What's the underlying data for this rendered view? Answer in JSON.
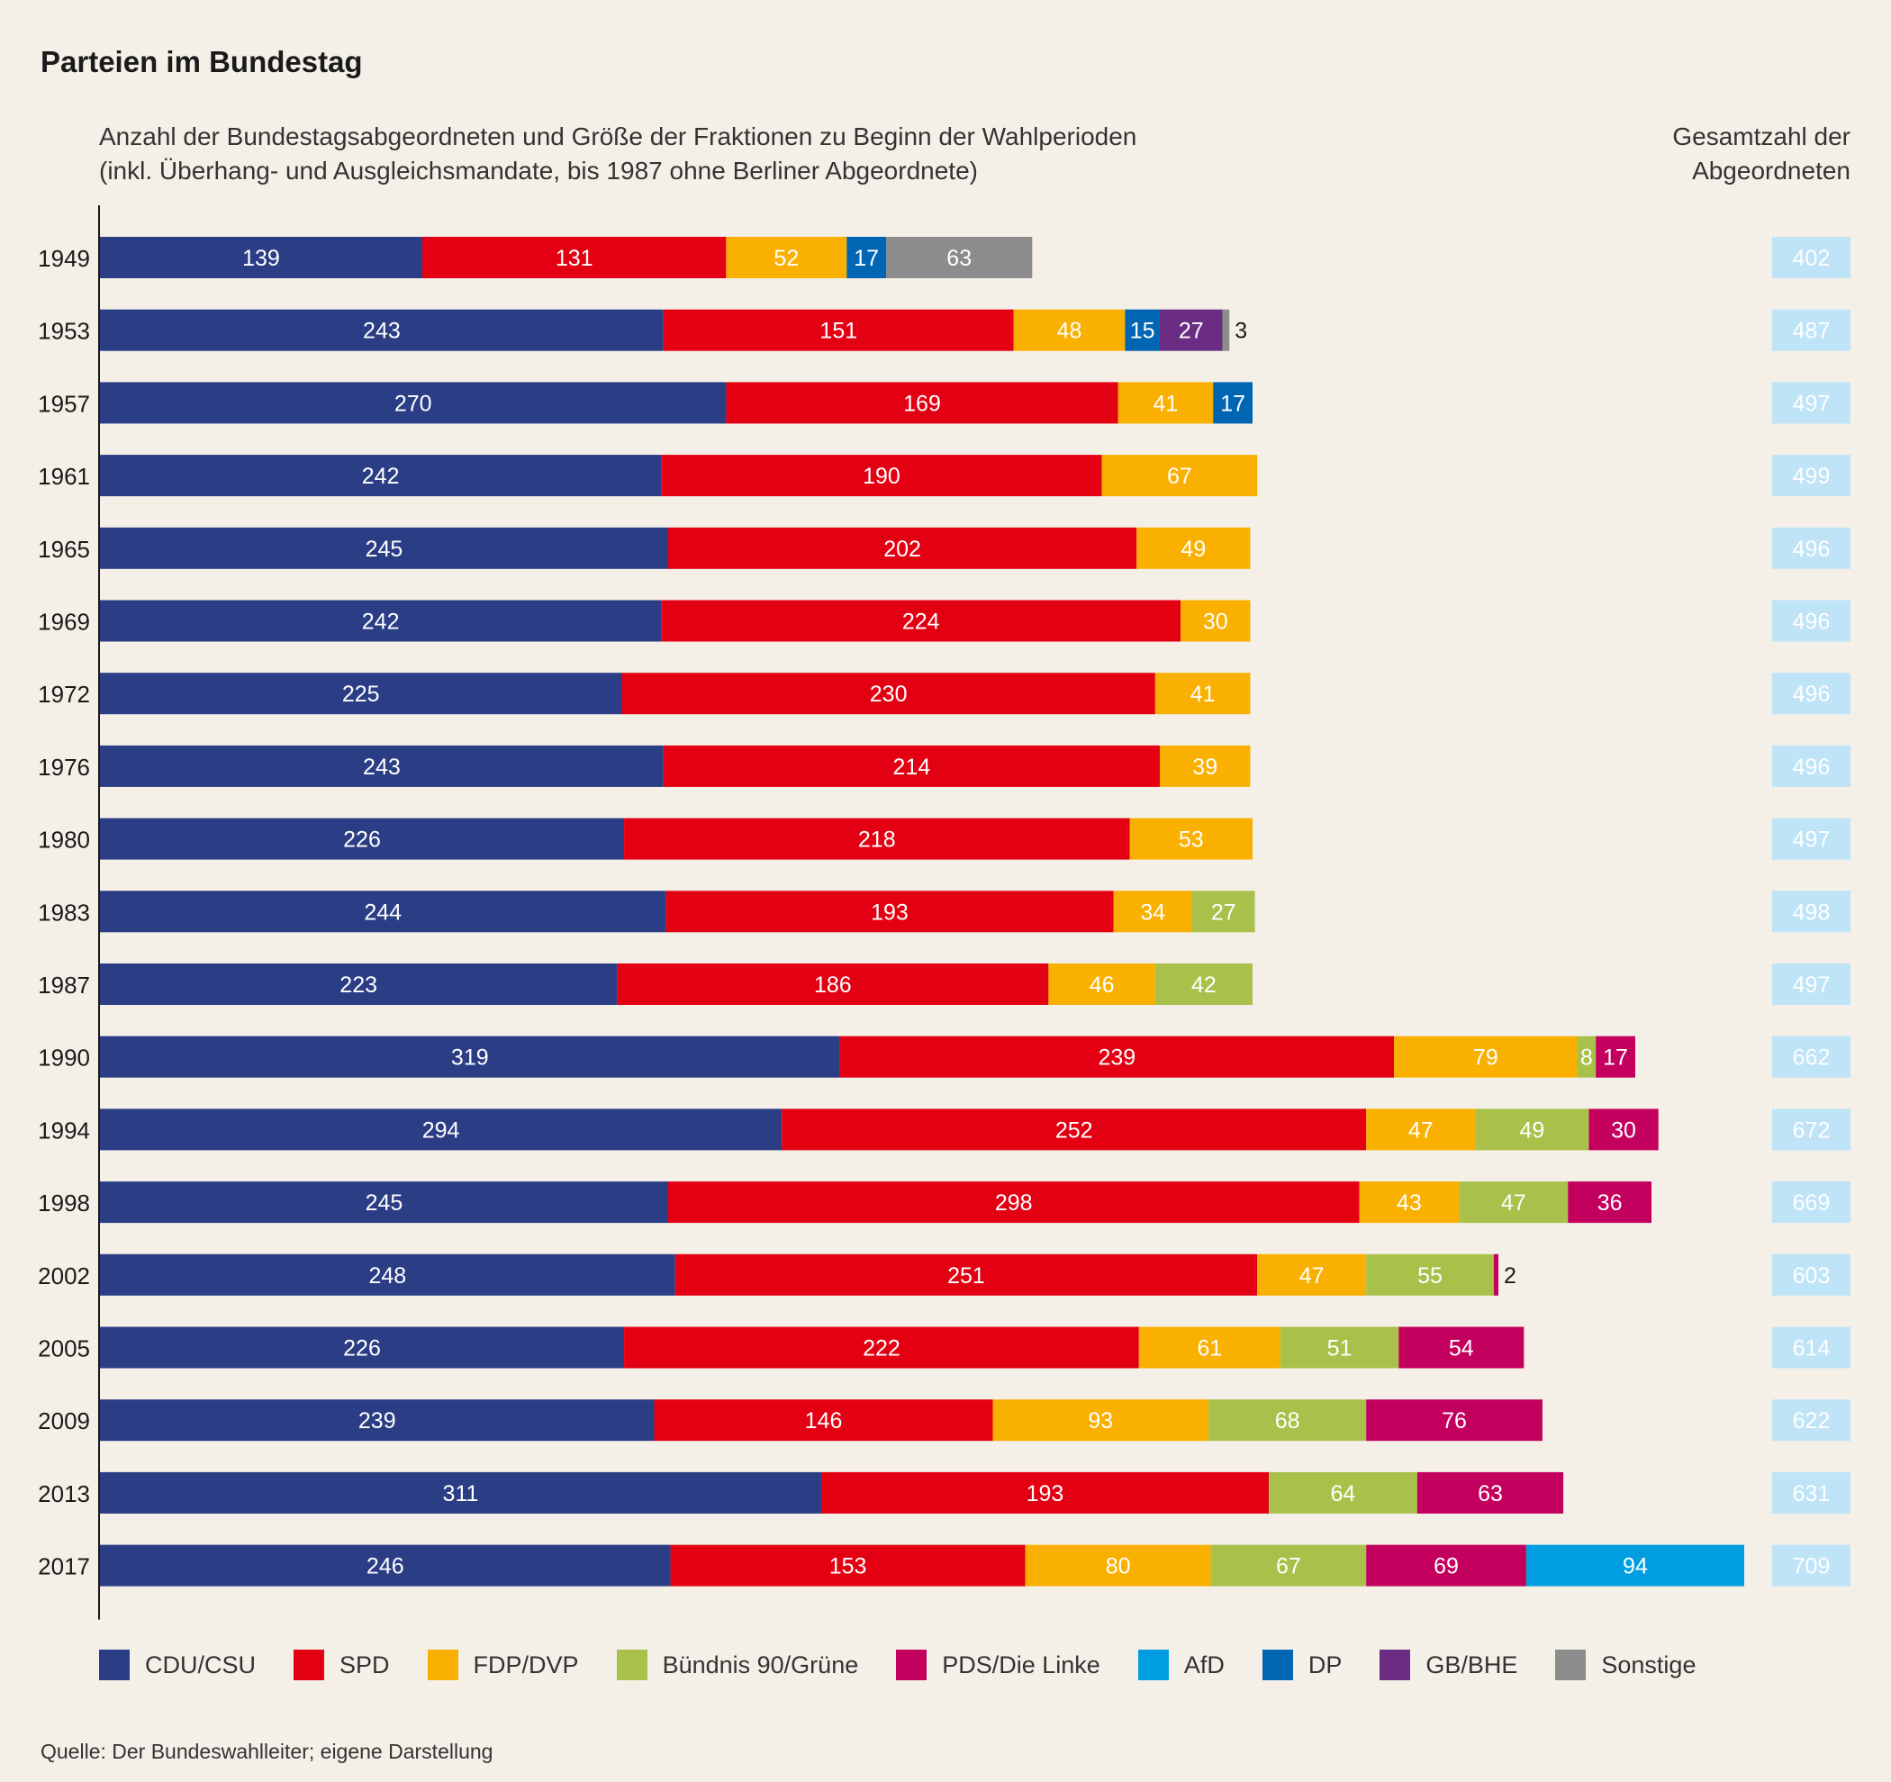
{
  "title": "Parteien im Bundestag",
  "subtitle_line1": "Anzahl der Bundestagsabgeordneten und Größe der Fraktionen zu Beginn der Wahlperioden",
  "subtitle_line2": "(inkl. Überhang- und Ausgleichsmandate, bis 1987 ohne Berliner Abgeordnete)",
  "total_header_line1": "Gesamtzahl der",
  "total_header_line2": "Abgeordneten",
  "source": "Quelle: Der Bundeswahlleiter; eigene Darstellung",
  "chart_data": {
    "type": "bar",
    "orientation": "horizontal",
    "stacked": true,
    "title": "Parteien im Bundestag",
    "xlim": [
      0,
      710
    ],
    "legend_position": "bottom",
    "grid": false,
    "parties": [
      {
        "name": "CDU/CSU",
        "color": "#2b3d85",
        "label_color": "#ffffff"
      },
      {
        "name": "SPD",
        "color": "#e30013",
        "label_color": "#ffffff"
      },
      {
        "name": "FDP/DVP",
        "color": "#f9b000",
        "label_color": "#ffffff"
      },
      {
        "name": "Bündnis 90/Grüne",
        "color": "#a9c14a",
        "label_color": "#ffffff"
      },
      {
        "name": "PDS/Die Linke",
        "color": "#c4005e",
        "label_color": "#ffffff"
      },
      {
        "name": "AfD",
        "color": "#009ee0",
        "label_color": "#ffffff"
      },
      {
        "name": "DP",
        "color": "#0066b3",
        "label_color": "#ffffff"
      },
      {
        "name": "GB/BHE",
        "color": "#6b2d83",
        "label_color": "#ffffff"
      },
      {
        "name": "Sonstige",
        "color": "#8c8c8c",
        "label_color": "#ffffff"
      }
    ],
    "rows": [
      {
        "year": "1949",
        "total": 402,
        "segments": [
          {
            "party": "CDU/CSU",
            "value": 139
          },
          {
            "party": "SPD",
            "value": 131
          },
          {
            "party": "FDP/DVP",
            "value": 52
          },
          {
            "party": "DP",
            "value": 17
          },
          {
            "party": "Sonstige",
            "value": 63
          }
        ]
      },
      {
        "year": "1953",
        "total": 487,
        "segments": [
          {
            "party": "CDU/CSU",
            "value": 243
          },
          {
            "party": "SPD",
            "value": 151
          },
          {
            "party": "FDP/DVP",
            "value": 48
          },
          {
            "party": "DP",
            "value": 15
          },
          {
            "party": "GB/BHE",
            "value": 27
          },
          {
            "party": "Sonstige",
            "value": 3
          }
        ]
      },
      {
        "year": "1957",
        "total": 497,
        "segments": [
          {
            "party": "CDU/CSU",
            "value": 270
          },
          {
            "party": "SPD",
            "value": 169
          },
          {
            "party": "FDP/DVP",
            "value": 41
          },
          {
            "party": "DP",
            "value": 17
          }
        ]
      },
      {
        "year": "1961",
        "total": 499,
        "segments": [
          {
            "party": "CDU/CSU",
            "value": 242
          },
          {
            "party": "SPD",
            "value": 190
          },
          {
            "party": "FDP/DVP",
            "value": 67
          }
        ]
      },
      {
        "year": "1965",
        "total": 496,
        "segments": [
          {
            "party": "CDU/CSU",
            "value": 245
          },
          {
            "party": "SPD",
            "value": 202
          },
          {
            "party": "FDP/DVP",
            "value": 49
          }
        ]
      },
      {
        "year": "1969",
        "total": 496,
        "segments": [
          {
            "party": "CDU/CSU",
            "value": 242
          },
          {
            "party": "SPD",
            "value": 224
          },
          {
            "party": "FDP/DVP",
            "value": 30
          }
        ]
      },
      {
        "year": "1972",
        "total": 496,
        "segments": [
          {
            "party": "CDU/CSU",
            "value": 225
          },
          {
            "party": "SPD",
            "value": 230
          },
          {
            "party": "FDP/DVP",
            "value": 41
          }
        ]
      },
      {
        "year": "1976",
        "total": 496,
        "segments": [
          {
            "party": "CDU/CSU",
            "value": 243
          },
          {
            "party": "SPD",
            "value": 214
          },
          {
            "party": "FDP/DVP",
            "value": 39
          }
        ]
      },
      {
        "year": "1980",
        "total": 497,
        "segments": [
          {
            "party": "CDU/CSU",
            "value": 226
          },
          {
            "party": "SPD",
            "value": 218
          },
          {
            "party": "FDP/DVP",
            "value": 53
          }
        ]
      },
      {
        "year": "1983",
        "total": 498,
        "segments": [
          {
            "party": "CDU/CSU",
            "value": 244
          },
          {
            "party": "SPD",
            "value": 193
          },
          {
            "party": "FDP/DVP",
            "value": 34
          },
          {
            "party": "Bündnis 90/Grüne",
            "value": 27
          }
        ]
      },
      {
        "year": "1987",
        "total": 497,
        "segments": [
          {
            "party": "CDU/CSU",
            "value": 223
          },
          {
            "party": "SPD",
            "value": 186
          },
          {
            "party": "FDP/DVP",
            "value": 46
          },
          {
            "party": "Bündnis 90/Grüne",
            "value": 42
          }
        ]
      },
      {
        "year": "1990",
        "total": 662,
        "segments": [
          {
            "party": "CDU/CSU",
            "value": 319
          },
          {
            "party": "SPD",
            "value": 239
          },
          {
            "party": "FDP/DVP",
            "value": 79
          },
          {
            "party": "Bündnis 90/Grüne",
            "value": 8
          },
          {
            "party": "PDS/Die Linke",
            "value": 17
          }
        ]
      },
      {
        "year": "1994",
        "total": 672,
        "segments": [
          {
            "party": "CDU/CSU",
            "value": 294
          },
          {
            "party": "SPD",
            "value": 252
          },
          {
            "party": "FDP/DVP",
            "value": 47
          },
          {
            "party": "Bündnis 90/Grüne",
            "value": 49
          },
          {
            "party": "PDS/Die Linke",
            "value": 30
          }
        ]
      },
      {
        "year": "1998",
        "total": 669,
        "segments": [
          {
            "party": "CDU/CSU",
            "value": 245
          },
          {
            "party": "SPD",
            "value": 298
          },
          {
            "party": "FDP/DVP",
            "value": 43
          },
          {
            "party": "Bündnis 90/Grüne",
            "value": 47
          },
          {
            "party": "PDS/Die Linke",
            "value": 36
          }
        ]
      },
      {
        "year": "2002",
        "total": 603,
        "segments": [
          {
            "party": "CDU/CSU",
            "value": 248
          },
          {
            "party": "SPD",
            "value": 251
          },
          {
            "party": "FDP/DVP",
            "value": 47
          },
          {
            "party": "Bündnis 90/Grüne",
            "value": 55
          },
          {
            "party": "PDS/Die Linke",
            "value": 2
          }
        ]
      },
      {
        "year": "2005",
        "total": 614,
        "segments": [
          {
            "party": "CDU/CSU",
            "value": 226
          },
          {
            "party": "SPD",
            "value": 222
          },
          {
            "party": "FDP/DVP",
            "value": 61
          },
          {
            "party": "Bündnis 90/Grüne",
            "value": 51
          },
          {
            "party": "PDS/Die Linke",
            "value": 54
          }
        ]
      },
      {
        "year": "2009",
        "total": 622,
        "segments": [
          {
            "party": "CDU/CSU",
            "value": 239
          },
          {
            "party": "SPD",
            "value": 146
          },
          {
            "party": "FDP/DVP",
            "value": 93
          },
          {
            "party": "Bündnis 90/Grüne",
            "value": 68
          },
          {
            "party": "PDS/Die Linke",
            "value": 76
          }
        ]
      },
      {
        "year": "2013",
        "total": 631,
        "segments": [
          {
            "party": "CDU/CSU",
            "value": 311
          },
          {
            "party": "SPD",
            "value": 193
          },
          {
            "party": "Bündnis 90/Grüne",
            "value": 64
          },
          {
            "party": "PDS/Die Linke",
            "value": 63
          }
        ]
      },
      {
        "year": "2017",
        "total": 709,
        "segments": [
          {
            "party": "CDU/CSU",
            "value": 246
          },
          {
            "party": "SPD",
            "value": 153
          },
          {
            "party": "FDP/DVP",
            "value": 80
          },
          {
            "party": "Bündnis 90/Grüne",
            "value": 67
          },
          {
            "party": "PDS/Die Linke",
            "value": 69
          },
          {
            "party": "AfD",
            "value": 94
          }
        ]
      }
    ],
    "total_box_color": "#bfe3f7"
  }
}
